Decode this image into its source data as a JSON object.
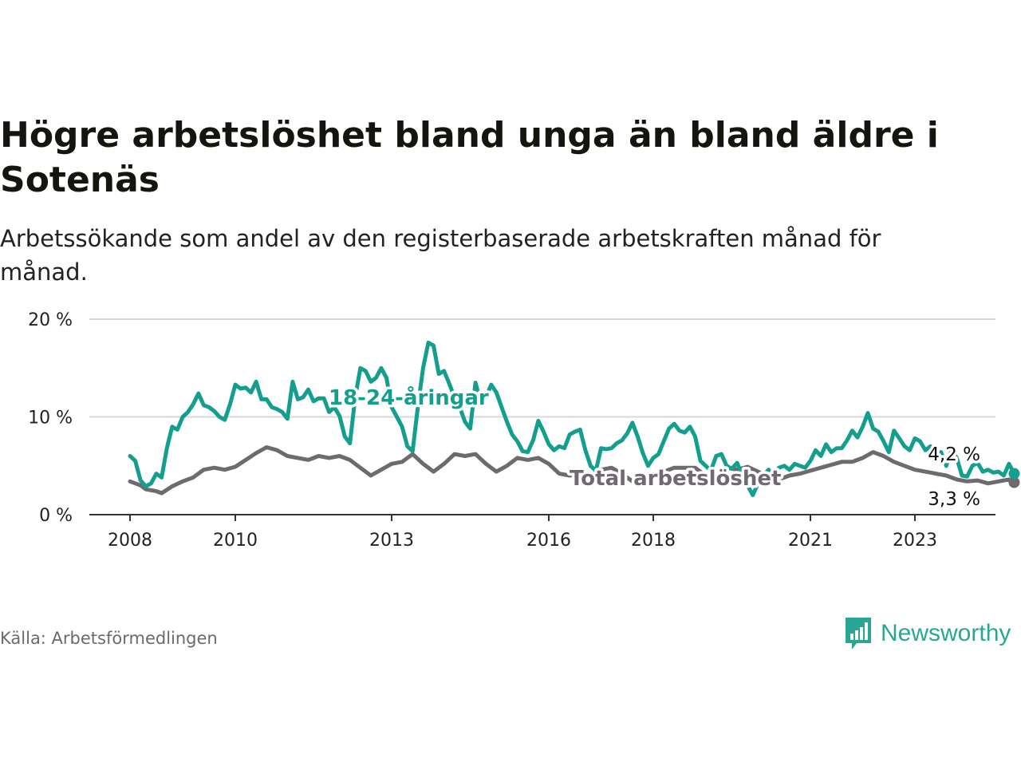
{
  "header": {
    "title": "Högre arbetslöshet bland unga än bland äldre i Sotenäs",
    "subtitle": "Arbetssökande som andel av den registerbaserade arbetskraften månad för månad."
  },
  "footer": {
    "source": "Källa: Arbetsförmedlingen",
    "brand": "Newsworthy"
  },
  "colors": {
    "youth": "#139e8e",
    "total": "#6e6a70",
    "grid": "#d8d8d8",
    "brand": "#2aa792"
  },
  "chart_data": {
    "type": "line",
    "title": "Högre arbetslöshet bland unga än bland äldre i Sotenäs",
    "xlabel": "",
    "ylabel": "",
    "ylim": [
      0,
      20
    ],
    "xlim": [
      2007.75,
      2024.5
    ],
    "y_ticks": [
      {
        "value": 0,
        "label": "0 %"
      },
      {
        "value": 10,
        "label": "10 %"
      },
      {
        "value": 20,
        "label": "20 %"
      }
    ],
    "x_ticks": [
      {
        "value": 2008,
        "label": "2008"
      },
      {
        "value": 2010,
        "label": "2010"
      },
      {
        "value": 2013,
        "label": "2013"
      },
      {
        "value": 2016,
        "label": "2016"
      },
      {
        "value": 2018,
        "label": "2018"
      },
      {
        "value": 2021,
        "label": "2021"
      },
      {
        "value": 2023,
        "label": "2023"
      }
    ],
    "series": [
      {
        "name": "18-24-åringar",
        "label": "18-24-åringar",
        "points": [
          [
            2008.0,
            6.0
          ],
          [
            2008.1,
            5.5
          ],
          [
            2008.2,
            3.5
          ],
          [
            2008.3,
            2.9
          ],
          [
            2008.4,
            3.2
          ],
          [
            2008.5,
            4.2
          ],
          [
            2008.6,
            3.8
          ],
          [
            2008.7,
            6.8
          ],
          [
            2008.8,
            9.0
          ],
          [
            2008.9,
            8.7
          ],
          [
            2009.0,
            10.0
          ],
          [
            2009.1,
            10.5
          ],
          [
            2009.2,
            11.3
          ],
          [
            2009.3,
            12.4
          ],
          [
            2009.4,
            11.2
          ],
          [
            2009.5,
            11.0
          ],
          [
            2009.6,
            10.6
          ],
          [
            2009.7,
            10.0
          ],
          [
            2009.8,
            9.7
          ],
          [
            2009.9,
            11.3
          ],
          [
            2010.0,
            13.3
          ],
          [
            2010.1,
            12.9
          ],
          [
            2010.2,
            13.0
          ],
          [
            2010.3,
            12.5
          ],
          [
            2010.4,
            13.6
          ],
          [
            2010.5,
            11.8
          ],
          [
            2010.6,
            11.8
          ],
          [
            2010.7,
            11.0
          ],
          [
            2010.8,
            10.8
          ],
          [
            2010.9,
            10.5
          ],
          [
            2011.0,
            9.8
          ],
          [
            2011.1,
            13.6
          ],
          [
            2011.2,
            11.8
          ],
          [
            2011.3,
            12.0
          ],
          [
            2011.4,
            12.8
          ],
          [
            2011.5,
            11.6
          ],
          [
            2011.6,
            11.9
          ],
          [
            2011.7,
            11.9
          ],
          [
            2011.8,
            10.5
          ],
          [
            2011.9,
            11.0
          ],
          [
            2012.0,
            10.1
          ],
          [
            2012.1,
            8.0
          ],
          [
            2012.2,
            7.3
          ],
          [
            2012.3,
            12.0
          ],
          [
            2012.4,
            15.0
          ],
          [
            2012.5,
            14.7
          ],
          [
            2012.6,
            13.6
          ],
          [
            2012.7,
            14.0
          ],
          [
            2012.8,
            15.0
          ],
          [
            2012.9,
            14.0
          ],
          [
            2013.0,
            11.0
          ],
          [
            2013.1,
            10.0
          ],
          [
            2013.2,
            9.0
          ],
          [
            2013.3,
            7.0
          ],
          [
            2013.4,
            6.5
          ],
          [
            2013.5,
            11.0
          ],
          [
            2013.6,
            15.0
          ],
          [
            2013.7,
            17.6
          ],
          [
            2013.8,
            17.3
          ],
          [
            2013.9,
            14.4
          ],
          [
            2014.0,
            14.7
          ],
          [
            2014.1,
            13.4
          ],
          [
            2014.2,
            12.0
          ],
          [
            2014.3,
            11.0
          ],
          [
            2014.4,
            9.5
          ],
          [
            2014.5,
            8.8
          ],
          [
            2014.6,
            13.5
          ],
          [
            2014.7,
            11.5
          ],
          [
            2014.8,
            12.0
          ],
          [
            2014.9,
            13.3
          ],
          [
            2015.0,
            12.5
          ],
          [
            2015.1,
            11.0
          ],
          [
            2015.2,
            9.5
          ],
          [
            2015.3,
            8.2
          ],
          [
            2015.4,
            7.5
          ],
          [
            2015.5,
            6.5
          ],
          [
            2015.6,
            6.4
          ],
          [
            2015.7,
            7.6
          ],
          [
            2015.8,
            9.6
          ],
          [
            2015.9,
            8.5
          ],
          [
            2016.0,
            7.2
          ],
          [
            2016.1,
            6.6
          ],
          [
            2016.2,
            7.0
          ],
          [
            2016.3,
            6.8
          ],
          [
            2016.4,
            8.2
          ],
          [
            2016.5,
            8.5
          ],
          [
            2016.6,
            8.7
          ],
          [
            2016.7,
            6.6
          ],
          [
            2016.8,
            5.0
          ],
          [
            2016.9,
            4.5
          ],
          [
            2017.0,
            6.8
          ],
          [
            2017.1,
            6.7
          ],
          [
            2017.2,
            6.8
          ],
          [
            2017.3,
            7.3
          ],
          [
            2017.4,
            7.6
          ],
          [
            2017.5,
            8.3
          ],
          [
            2017.6,
            9.4
          ],
          [
            2017.7,
            8.0
          ],
          [
            2017.8,
            6.3
          ],
          [
            2017.9,
            5.0
          ],
          [
            2018.0,
            5.8
          ],
          [
            2018.1,
            6.2
          ],
          [
            2018.2,
            7.5
          ],
          [
            2018.3,
            8.8
          ],
          [
            2018.4,
            9.3
          ],
          [
            2018.5,
            8.6
          ],
          [
            2018.6,
            8.4
          ],
          [
            2018.7,
            9.0
          ],
          [
            2018.8,
            8.0
          ],
          [
            2018.9,
            5.5
          ],
          [
            2019.0,
            5.0
          ],
          [
            2019.1,
            4.5
          ],
          [
            2019.2,
            6.0
          ],
          [
            2019.3,
            6.2
          ],
          [
            2019.4,
            5.0
          ],
          [
            2019.5,
            4.7
          ],
          [
            2019.6,
            5.3
          ],
          [
            2019.7,
            4.0
          ],
          [
            2019.8,
            3.0
          ],
          [
            2019.9,
            2.0
          ],
          [
            2020.0,
            3.2
          ],
          [
            2020.1,
            4.0
          ],
          [
            2020.2,
            4.6
          ],
          [
            2020.3,
            4.2
          ],
          [
            2020.4,
            4.8
          ],
          [
            2020.5,
            5.0
          ],
          [
            2020.6,
            4.6
          ],
          [
            2020.7,
            5.2
          ],
          [
            2020.8,
            5.0
          ],
          [
            2020.9,
            4.8
          ],
          [
            2021.0,
            5.5
          ],
          [
            2021.1,
            6.6
          ],
          [
            2021.2,
            6.0
          ],
          [
            2021.3,
            7.2
          ],
          [
            2021.4,
            6.4
          ],
          [
            2021.5,
            6.8
          ],
          [
            2021.6,
            6.8
          ],
          [
            2021.7,
            7.6
          ],
          [
            2021.8,
            8.6
          ],
          [
            2021.9,
            7.9
          ],
          [
            2022.0,
            9.0
          ],
          [
            2022.1,
            10.4
          ],
          [
            2022.2,
            8.8
          ],
          [
            2022.3,
            8.5
          ],
          [
            2022.4,
            7.5
          ],
          [
            2022.5,
            6.4
          ],
          [
            2022.6,
            8.6
          ],
          [
            2022.7,
            7.8
          ],
          [
            2022.8,
            7.0
          ],
          [
            2022.9,
            6.6
          ],
          [
            2023.0,
            7.8
          ],
          [
            2023.1,
            7.5
          ],
          [
            2023.2,
            6.6
          ],
          [
            2023.3,
            7.0
          ],
          [
            2023.4,
            6.0
          ],
          [
            2023.5,
            6.4
          ],
          [
            2023.6,
            5.0
          ],
          [
            2023.7,
            6.6
          ],
          [
            2023.8,
            5.8
          ],
          [
            2023.9,
            4.0
          ],
          [
            2024.0,
            3.9
          ],
          [
            2024.1,
            5.0
          ],
          [
            2024.2,
            5.3
          ],
          [
            2024.3,
            4.4
          ],
          [
            2024.4,
            4.6
          ],
          [
            2024.5,
            4.3
          ],
          [
            2024.6,
            4.4
          ],
          [
            2024.7,
            4.0
          ],
          [
            2024.8,
            5.2
          ],
          [
            2024.9,
            4.2
          ]
        ]
      },
      {
        "name": "Total arbetslöshet",
        "label": "Total arbetslöshet",
        "points": [
          [
            2008.0,
            3.4
          ],
          [
            2008.2,
            3.0
          ],
          [
            2008.3,
            2.6
          ],
          [
            2008.5,
            2.4
          ],
          [
            2008.6,
            2.2
          ],
          [
            2008.8,
            2.9
          ],
          [
            2009.0,
            3.4
          ],
          [
            2009.2,
            3.8
          ],
          [
            2009.4,
            4.6
          ],
          [
            2009.6,
            4.8
          ],
          [
            2009.8,
            4.6
          ],
          [
            2010.0,
            4.9
          ],
          [
            2010.2,
            5.6
          ],
          [
            2010.4,
            6.3
          ],
          [
            2010.6,
            6.9
          ],
          [
            2010.8,
            6.6
          ],
          [
            2011.0,
            6.0
          ],
          [
            2011.2,
            5.8
          ],
          [
            2011.4,
            5.6
          ],
          [
            2011.6,
            6.0
          ],
          [
            2011.8,
            5.8
          ],
          [
            2012.0,
            6.0
          ],
          [
            2012.2,
            5.6
          ],
          [
            2012.4,
            4.8
          ],
          [
            2012.6,
            4.0
          ],
          [
            2012.8,
            4.6
          ],
          [
            2013.0,
            5.2
          ],
          [
            2013.2,
            5.4
          ],
          [
            2013.4,
            6.2
          ],
          [
            2013.6,
            5.2
          ],
          [
            2013.8,
            4.4
          ],
          [
            2014.0,
            5.2
          ],
          [
            2014.2,
            6.2
          ],
          [
            2014.4,
            6.0
          ],
          [
            2014.6,
            6.2
          ],
          [
            2014.8,
            5.2
          ],
          [
            2015.0,
            4.4
          ],
          [
            2015.2,
            5.0
          ],
          [
            2015.4,
            5.8
          ],
          [
            2015.6,
            5.6
          ],
          [
            2015.8,
            5.8
          ],
          [
            2016.0,
            5.2
          ],
          [
            2016.2,
            4.2
          ],
          [
            2016.4,
            4.0
          ],
          [
            2016.6,
            4.2
          ],
          [
            2016.8,
            4.0
          ],
          [
            2017.0,
            4.6
          ],
          [
            2017.2,
            4.8
          ],
          [
            2017.4,
            4.2
          ],
          [
            2017.6,
            3.4
          ],
          [
            2017.8,
            3.2
          ],
          [
            2018.0,
            4.0
          ],
          [
            2018.2,
            4.4
          ],
          [
            2018.4,
            4.8
          ],
          [
            2018.6,
            4.8
          ],
          [
            2018.8,
            4.8
          ],
          [
            2019.0,
            4.0
          ],
          [
            2019.2,
            3.9
          ],
          [
            2019.4,
            4.8
          ],
          [
            2019.6,
            4.6
          ],
          [
            2019.8,
            4.9
          ],
          [
            2020.0,
            4.4
          ],
          [
            2020.2,
            3.8
          ],
          [
            2020.4,
            3.6
          ],
          [
            2020.6,
            4.0
          ],
          [
            2020.8,
            4.2
          ],
          [
            2021.0,
            4.5
          ],
          [
            2021.2,
            4.8
          ],
          [
            2021.4,
            5.1
          ],
          [
            2021.6,
            5.4
          ],
          [
            2021.8,
            5.4
          ],
          [
            2022.0,
            5.8
          ],
          [
            2022.2,
            6.4
          ],
          [
            2022.4,
            6.0
          ],
          [
            2022.6,
            5.4
          ],
          [
            2022.8,
            5.0
          ],
          [
            2023.0,
            4.6
          ],
          [
            2023.2,
            4.4
          ],
          [
            2023.4,
            4.2
          ],
          [
            2023.6,
            4.0
          ],
          [
            2023.8,
            3.6
          ],
          [
            2024.0,
            3.4
          ],
          [
            2024.2,
            3.5
          ],
          [
            2024.4,
            3.2
          ],
          [
            2024.6,
            3.4
          ],
          [
            2024.8,
            3.6
          ],
          [
            2024.9,
            3.3
          ]
        ]
      }
    ],
    "annotations": [
      {
        "text": "18-24-åringar",
        "series": "18-24-åringar"
      },
      {
        "text": "Total arbetslöshet",
        "series": "Total arbetslöshet"
      },
      {
        "text": "4,2 %",
        "series": "18-24-åringar",
        "value": 4.2
      },
      {
        "text": "3,3 %",
        "series": "Total arbetslöshet",
        "value": 3.3
      }
    ]
  }
}
